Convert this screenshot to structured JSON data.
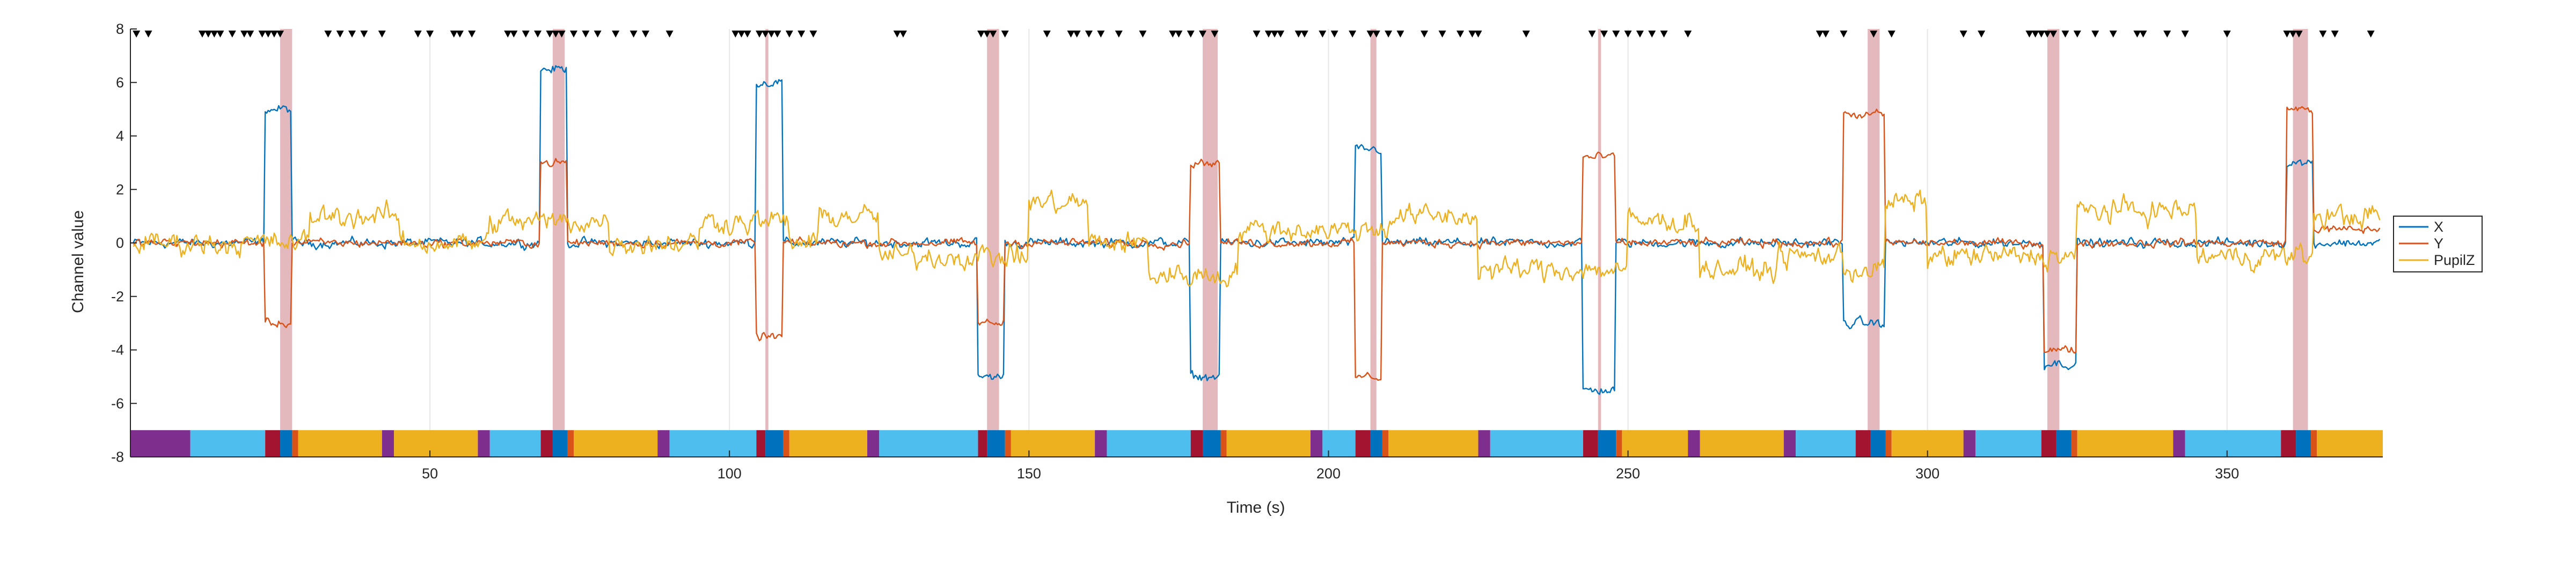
{
  "chart_data": {
    "type": "line",
    "xlabel": "Time (s)",
    "ylabel": "Channel value",
    "xlim": [
      0,
      376
    ],
    "ylim": [
      -8,
      8
    ],
    "xticks": [
      50,
      100,
      150,
      200,
      250,
      300,
      350
    ],
    "yticks": [
      -8,
      -6,
      -4,
      -2,
      0,
      2,
      4,
      6,
      8
    ],
    "grid_x": true,
    "grid_y": false,
    "legend_position": "right",
    "series": [
      {
        "name": "X",
        "color": "#0072BD",
        "segments": [
          {
            "start": 0,
            "level": 0
          },
          {
            "start": 22.5,
            "level": 5
          },
          {
            "start": 27,
            "level": 0
          },
          {
            "start": 68.5,
            "level": 6.5
          },
          {
            "start": 73,
            "level": 0
          },
          {
            "start": 104.5,
            "level": 6
          },
          {
            "start": 109,
            "level": 0
          },
          {
            "start": 141.5,
            "level": -5
          },
          {
            "start": 146,
            "level": 0
          },
          {
            "start": 177,
            "level": -5
          },
          {
            "start": 182,
            "level": 0
          },
          {
            "start": 204.5,
            "level": 3.5
          },
          {
            "start": 209,
            "level": 0
          },
          {
            "start": 242.5,
            "level": -5.5
          },
          {
            "start": 248,
            "level": 0
          },
          {
            "start": 286,
            "level": -3
          },
          {
            "start": 293,
            "level": 0
          },
          {
            "start": 319.5,
            "level": -4.5
          },
          {
            "start": 325,
            "level": 0
          },
          {
            "start": 360,
            "level": 3
          },
          {
            "start": 364.5,
            "level": 0
          }
        ]
      },
      {
        "name": "Y",
        "color": "#D95319",
        "segments": [
          {
            "start": 0,
            "level": 0
          },
          {
            "start": 22.5,
            "level": -3
          },
          {
            "start": 27,
            "level": 0
          },
          {
            "start": 68.5,
            "level": 3
          },
          {
            "start": 73,
            "level": 0
          },
          {
            "start": 104.5,
            "level": -3.5
          },
          {
            "start": 109,
            "level": 0
          },
          {
            "start": 141.5,
            "level": -3
          },
          {
            "start": 146,
            "level": 0
          },
          {
            "start": 177,
            "level": 3
          },
          {
            "start": 182,
            "level": 0
          },
          {
            "start": 204.5,
            "level": -5
          },
          {
            "start": 209,
            "level": 0
          },
          {
            "start": 242.5,
            "level": 3.2
          },
          {
            "start": 248,
            "level": 0
          },
          {
            "start": 286,
            "level": 4.8
          },
          {
            "start": 293,
            "level": 0
          },
          {
            "start": 319.5,
            "level": -4
          },
          {
            "start": 325,
            "level": 0
          },
          {
            "start": 360,
            "level": 5
          },
          {
            "start": 364.5,
            "level": 0.5
          }
        ]
      },
      {
        "name": "PupilZ",
        "color": "#EDB120",
        "segments": [
          {
            "start": 0,
            "level": 0
          },
          {
            "start": 30,
            "level": 1
          },
          {
            "start": 45,
            "level": 0
          },
          {
            "start": 60,
            "level": 0.8
          },
          {
            "start": 80,
            "level": 0
          },
          {
            "start": 95,
            "level": 0.8
          },
          {
            "start": 110,
            "level": 0
          },
          {
            "start": 115,
            "level": 1
          },
          {
            "start": 125,
            "level": -0.5
          },
          {
            "start": 150,
            "level": 1.5
          },
          {
            "start": 160,
            "level": 0
          },
          {
            "start": 170,
            "level": -1.2
          },
          {
            "start": 185,
            "level": 0.5
          },
          {
            "start": 210,
            "level": 1
          },
          {
            "start": 225,
            "level": -1
          },
          {
            "start": 250,
            "level": 0.8
          },
          {
            "start": 262,
            "level": -1
          },
          {
            "start": 275,
            "level": -0.5
          },
          {
            "start": 286,
            "level": -1
          },
          {
            "start": 293,
            "level": 1.5
          },
          {
            "start": 300,
            "level": -0.5
          },
          {
            "start": 325,
            "level": 1.2
          },
          {
            "start": 345,
            "level": -0.5
          },
          {
            "start": 364.5,
            "level": 1
          }
        ]
      }
    ],
    "highlight_bands": [
      [
        25,
        27
      ],
      [
        70.5,
        72.5
      ],
      [
        106,
        106.5
      ],
      [
        143,
        145
      ],
      [
        179,
        181.5
      ],
      [
        207,
        208
      ],
      [
        245,
        245.5
      ],
      [
        290,
        292
      ],
      [
        320,
        322
      ],
      [
        361,
        363.5
      ]
    ],
    "event_markers": [
      1,
      3,
      12,
      13,
      14,
      15,
      17,
      19,
      20,
      22,
      23,
      24,
      25,
      33,
      35,
      37,
      39,
      42,
      48,
      50,
      54,
      55,
      57,
      63,
      64,
      66,
      68,
      70,
      71,
      72,
      74,
      76,
      78,
      81,
      84,
      86,
      90,
      101,
      102,
      103,
      105,
      106,
      107,
      108,
      110,
      112,
      114,
      128,
      129,
      142,
      143,
      144,
      146,
      153,
      157,
      158,
      160,
      162,
      165,
      169,
      174,
      175,
      177,
      179,
      181,
      188,
      190,
      191,
      192,
      195,
      196,
      199,
      201,
      204,
      207,
      208,
      210,
      212,
      216,
      219,
      222,
      224,
      225,
      233,
      244,
      246,
      248,
      250,
      252,
      254,
      256,
      260,
      282,
      283,
      286,
      291,
      294,
      306,
      309,
      317,
      318,
      319,
      320,
      321,
      323,
      325,
      328,
      331,
      335,
      336,
      340,
      343,
      350,
      360,
      361,
      362,
      366,
      368,
      374
    ],
    "color_bar": {
      "y_from": -8,
      "y_to": -7,
      "blocks": [
        {
          "start": 0,
          "end": 10,
          "color": "#7E2F8E"
        },
        {
          "start": 10,
          "end": 22.5,
          "color": "#4DBEEE"
        },
        {
          "start": 22.5,
          "end": 25,
          "color": "#A2142F"
        },
        {
          "start": 25,
          "end": 27,
          "color": "#0072BD"
        },
        {
          "start": 27,
          "end": 28,
          "color": "#D95319"
        },
        {
          "start": 28,
          "end": 42,
          "color": "#EDB120"
        },
        {
          "start": 42,
          "end": 44,
          "color": "#7E2F8E"
        },
        {
          "start": 44,
          "end": 58,
          "color": "#EDB120"
        },
        {
          "start": 58,
          "end": 60,
          "color": "#7E2F8E"
        },
        {
          "start": 60,
          "end": 68.5,
          "color": "#4DBEEE"
        },
        {
          "start": 68.5,
          "end": 70.5,
          "color": "#A2142F"
        },
        {
          "start": 70.5,
          "end": 73,
          "color": "#0072BD"
        },
        {
          "start": 73,
          "end": 74,
          "color": "#D95319"
        },
        {
          "start": 74,
          "end": 88,
          "color": "#EDB120"
        },
        {
          "start": 88,
          "end": 90,
          "color": "#7E2F8E"
        },
        {
          "start": 90,
          "end": 104.5,
          "color": "#4DBEEE"
        },
        {
          "start": 104.5,
          "end": 106,
          "color": "#A2142F"
        },
        {
          "start": 106,
          "end": 109,
          "color": "#0072BD"
        },
        {
          "start": 109,
          "end": 110,
          "color": "#D95319"
        },
        {
          "start": 110,
          "end": 123,
          "color": "#EDB120"
        },
        {
          "start": 123,
          "end": 125,
          "color": "#7E2F8E"
        },
        {
          "start": 125,
          "end": 141.5,
          "color": "#4DBEEE"
        },
        {
          "start": 141.5,
          "end": 143,
          "color": "#A2142F"
        },
        {
          "start": 143,
          "end": 146,
          "color": "#0072BD"
        },
        {
          "start": 146,
          "end": 147,
          "color": "#D95319"
        },
        {
          "start": 147,
          "end": 161,
          "color": "#EDB120"
        },
        {
          "start": 161,
          "end": 163,
          "color": "#7E2F8E"
        },
        {
          "start": 163,
          "end": 177,
          "color": "#4DBEEE"
        },
        {
          "start": 177,
          "end": 179,
          "color": "#A2142F"
        },
        {
          "start": 179,
          "end": 182,
          "color": "#0072BD"
        },
        {
          "start": 182,
          "end": 183,
          "color": "#D95319"
        },
        {
          "start": 183,
          "end": 197,
          "color": "#EDB120"
        },
        {
          "start": 197,
          "end": 199,
          "color": "#7E2F8E"
        },
        {
          "start": 199,
          "end": 204.5,
          "color": "#4DBEEE"
        },
        {
          "start": 204.5,
          "end": 207,
          "color": "#A2142F"
        },
        {
          "start": 207,
          "end": 209,
          "color": "#0072BD"
        },
        {
          "start": 209,
          "end": 210,
          "color": "#D95319"
        },
        {
          "start": 210,
          "end": 225,
          "color": "#EDB120"
        },
        {
          "start": 225,
          "end": 227,
          "color": "#7E2F8E"
        },
        {
          "start": 227,
          "end": 242.5,
          "color": "#4DBEEE"
        },
        {
          "start": 242.5,
          "end": 245,
          "color": "#A2142F"
        },
        {
          "start": 245,
          "end": 248,
          "color": "#0072BD"
        },
        {
          "start": 248,
          "end": 249,
          "color": "#D95319"
        },
        {
          "start": 249,
          "end": 260,
          "color": "#EDB120"
        },
        {
          "start": 260,
          "end": 262,
          "color": "#7E2F8E"
        },
        {
          "start": 262,
          "end": 276,
          "color": "#EDB120"
        },
        {
          "start": 276,
          "end": 278,
          "color": "#7E2F8E"
        },
        {
          "start": 278,
          "end": 288,
          "color": "#4DBEEE"
        },
        {
          "start": 288,
          "end": 290.5,
          "color": "#A2142F"
        },
        {
          "start": 290.5,
          "end": 293,
          "color": "#0072BD"
        },
        {
          "start": 293,
          "end": 294,
          "color": "#D95319"
        },
        {
          "start": 294,
          "end": 306,
          "color": "#EDB120"
        },
        {
          "start": 306,
          "end": 308,
          "color": "#7E2F8E"
        },
        {
          "start": 308,
          "end": 319,
          "color": "#4DBEEE"
        },
        {
          "start": 319,
          "end": 321.5,
          "color": "#A2142F"
        },
        {
          "start": 321.5,
          "end": 324,
          "color": "#0072BD"
        },
        {
          "start": 324,
          "end": 325,
          "color": "#D95319"
        },
        {
          "start": 325,
          "end": 341,
          "color": "#EDB120"
        },
        {
          "start": 341,
          "end": 343,
          "color": "#7E2F8E"
        },
        {
          "start": 343,
          "end": 359,
          "color": "#4DBEEE"
        },
        {
          "start": 359,
          "end": 361.5,
          "color": "#A2142F"
        },
        {
          "start": 361.5,
          "end": 364,
          "color": "#0072BD"
        },
        {
          "start": 364,
          "end": 365,
          "color": "#D95319"
        },
        {
          "start": 365,
          "end": 376,
          "color": "#EDB120"
        }
      ]
    }
  }
}
